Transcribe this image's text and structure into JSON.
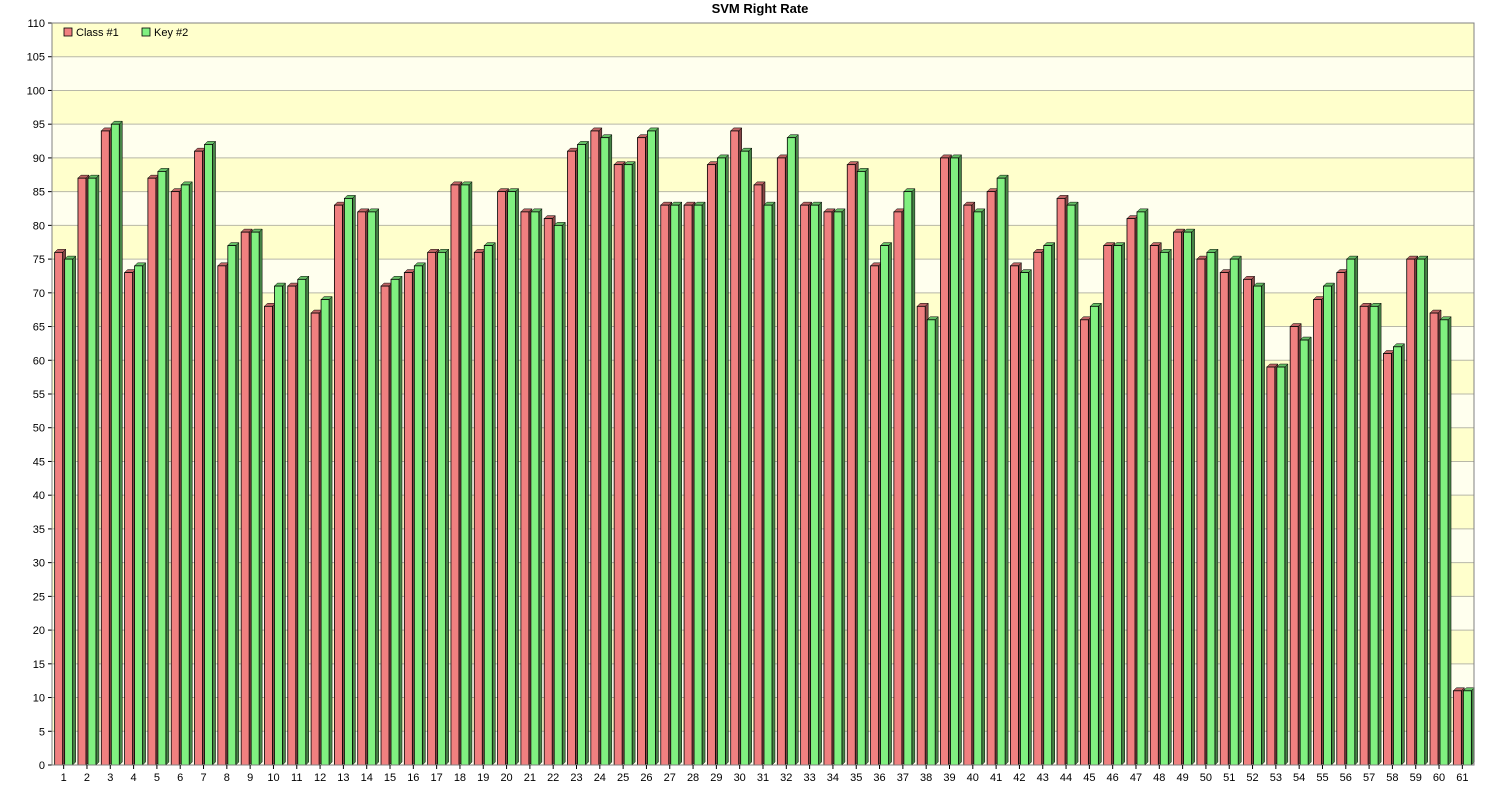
{
  "chart_data": {
    "type": "bar",
    "title": "SVM Right Rate",
    "xlabel": "",
    "ylabel": "",
    "ylim": [
      0,
      110
    ],
    "ytick_step": 5,
    "grid": true,
    "legend_position": "top-left",
    "categories": [
      "1",
      "2",
      "3",
      "4",
      "5",
      "6",
      "7",
      "8",
      "9",
      "10",
      "11",
      "12",
      "13",
      "14",
      "15",
      "16",
      "17",
      "18",
      "19",
      "20",
      "21",
      "22",
      "23",
      "24",
      "25",
      "26",
      "27",
      "28",
      "29",
      "30",
      "31",
      "32",
      "33",
      "34",
      "35",
      "36",
      "37",
      "38",
      "39",
      "40",
      "41",
      "42",
      "43",
      "44",
      "45",
      "46",
      "47",
      "48",
      "49",
      "50",
      "51",
      "52",
      "53",
      "54",
      "55",
      "56",
      "57",
      "58",
      "59",
      "60",
      "61"
    ],
    "series": [
      {
        "name": "Class #1",
        "color": "#f08080",
        "values": [
          76,
          87,
          94,
          73,
          87,
          85,
          91,
          74,
          79,
          68,
          71,
          67,
          83,
          82,
          71,
          73,
          76,
          86,
          76,
          85,
          82,
          81,
          91,
          94,
          89,
          93,
          83,
          83,
          89,
          94,
          86,
          90,
          83,
          82,
          89,
          74,
          82,
          68,
          90,
          83,
          85,
          74,
          76,
          84,
          66,
          77,
          81,
          77,
          79,
          75,
          73,
          72,
          59,
          65,
          69,
          73,
          68,
          61,
          75,
          67,
          11
        ]
      },
      {
        "name": "Key #2",
        "color": "#80f080",
        "values": [
          75,
          87,
          95,
          74,
          88,
          86,
          92,
          77,
          79,
          71,
          72,
          69,
          84,
          82,
          72,
          74,
          76,
          86,
          77,
          85,
          82,
          80,
          92,
          93,
          89,
          94,
          83,
          83,
          90,
          91,
          83,
          93,
          83,
          82,
          88,
          77,
          85,
          66,
          90,
          82,
          87,
          73,
          77,
          83,
          68,
          77,
          82,
          76,
          79,
          76,
          75,
          71,
          59,
          63,
          71,
          75,
          68,
          62,
          75,
          66,
          11
        ]
      }
    ]
  }
}
